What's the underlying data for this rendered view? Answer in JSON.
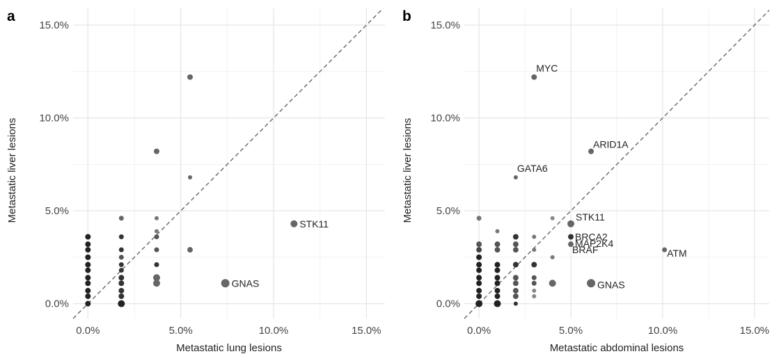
{
  "chart_data": [
    {
      "type": "scatter",
      "panel": "a",
      "xlabel": "Metastatic lung lesions",
      "ylabel": "Metastatic liver lesions",
      "xlim": [
        -0.8,
        16.0
      ],
      "ylim": [
        -0.8,
        15.9
      ],
      "xticks": [
        0,
        5,
        10,
        15
      ],
      "yticks": [
        0,
        5,
        10,
        15
      ],
      "tick_format": "percent_1dp",
      "grid": true,
      "reference_line": "y = x (dashed)",
      "points": [
        {
          "x": 0.0,
          "y": 0.0,
          "size": 4,
          "shade": "#222222"
        },
        {
          "x": 0.0,
          "y": 0.4,
          "size": 4,
          "shade": "#222222"
        },
        {
          "x": 0.0,
          "y": 0.7,
          "size": 4,
          "shade": "#222222"
        },
        {
          "x": 0.0,
          "y": 1.1,
          "size": 4,
          "shade": "#222222"
        },
        {
          "x": 0.0,
          "y": 1.4,
          "size": 4,
          "shade": "#222222"
        },
        {
          "x": 0.0,
          "y": 1.8,
          "size": 4,
          "shade": "#222222"
        },
        {
          "x": 0.0,
          "y": 2.1,
          "size": 4,
          "shade": "#222222"
        },
        {
          "x": 0.0,
          "y": 2.5,
          "size": 4,
          "shade": "#222222"
        },
        {
          "x": 0.0,
          "y": 2.9,
          "size": 4,
          "shade": "#222222"
        },
        {
          "x": 0.0,
          "y": 3.2,
          "size": 4,
          "shade": "#222222"
        },
        {
          "x": 0.0,
          "y": 3.6,
          "size": 4,
          "shade": "#222222"
        },
        {
          "x": 1.8,
          "y": 0.0,
          "size": 5,
          "shade": "#222222"
        },
        {
          "x": 1.8,
          "y": 0.4,
          "size": 4,
          "shade": "#333333"
        },
        {
          "x": 1.8,
          "y": 0.7,
          "size": 4,
          "shade": "#333333"
        },
        {
          "x": 1.8,
          "y": 1.1,
          "size": 4,
          "shade": "#333333"
        },
        {
          "x": 1.8,
          "y": 1.4,
          "size": 4,
          "shade": "#333333"
        },
        {
          "x": 1.8,
          "y": 1.8,
          "size": 3.5,
          "shade": "#333333"
        },
        {
          "x": 1.8,
          "y": 2.1,
          "size": 3.5,
          "shade": "#333333"
        },
        {
          "x": 1.8,
          "y": 2.5,
          "size": 3.5,
          "shade": "#555555"
        },
        {
          "x": 1.8,
          "y": 2.9,
          "size": 3.5,
          "shade": "#333333"
        },
        {
          "x": 1.8,
          "y": 3.6,
          "size": 3.5,
          "shade": "#333333"
        },
        {
          "x": 1.8,
          "y": 4.6,
          "size": 3.5,
          "shade": "#666666"
        },
        {
          "x": 3.7,
          "y": 1.1,
          "size": 5,
          "shade": "#666666"
        },
        {
          "x": 3.7,
          "y": 1.4,
          "size": 5,
          "shade": "#666666"
        },
        {
          "x": 3.7,
          "y": 2.1,
          "size": 3.5,
          "shade": "#333333"
        },
        {
          "x": 3.7,
          "y": 2.9,
          "size": 3.5,
          "shade": "#555555"
        },
        {
          "x": 3.7,
          "y": 3.6,
          "size": 3.5,
          "shade": "#555555"
        },
        {
          "x": 3.7,
          "y": 3.9,
          "size": 3,
          "shade": "#777777"
        },
        {
          "x": 3.7,
          "y": 4.6,
          "size": 3,
          "shade": "#777777"
        },
        {
          "x": 3.7,
          "y": 8.2,
          "size": 4,
          "shade": "#666666"
        },
        {
          "x": 5.5,
          "y": 2.9,
          "size": 4,
          "shade": "#666666"
        },
        {
          "x": 5.5,
          "y": 6.8,
          "size": 3,
          "shade": "#666666"
        },
        {
          "x": 5.5,
          "y": 12.2,
          "size": 4,
          "shade": "#666666"
        },
        {
          "x": 7.4,
          "y": 1.1,
          "size": 6,
          "shade": "#666666",
          "label": "GNAS"
        },
        {
          "x": 11.1,
          "y": 4.3,
          "size": 5,
          "shade": "#666666",
          "label": "STK11"
        }
      ]
    },
    {
      "type": "scatter",
      "panel": "b",
      "xlabel": "Metastatic abdominal lesions",
      "ylabel": "Metastatic liver lesions",
      "xlim": [
        -0.8,
        15.8
      ],
      "ylim": [
        -0.8,
        15.9
      ],
      "xticks": [
        0,
        5,
        10,
        15
      ],
      "yticks": [
        0,
        5,
        10,
        15
      ],
      "tick_format": "percent_1dp",
      "grid": true,
      "reference_line": "y = x (dashed)",
      "points": [
        {
          "x": 0.0,
          "y": 0.0,
          "size": 5,
          "shade": "#222222"
        },
        {
          "x": 0.0,
          "y": 0.4,
          "size": 4,
          "shade": "#222222"
        },
        {
          "x": 0.0,
          "y": 0.7,
          "size": 4,
          "shade": "#222222"
        },
        {
          "x": 0.0,
          "y": 1.1,
          "size": 4,
          "shade": "#222222"
        },
        {
          "x": 0.0,
          "y": 1.4,
          "size": 4,
          "shade": "#222222"
        },
        {
          "x": 0.0,
          "y": 1.8,
          "size": 4,
          "shade": "#222222"
        },
        {
          "x": 0.0,
          "y": 2.1,
          "size": 4,
          "shade": "#222222"
        },
        {
          "x": 0.0,
          "y": 2.5,
          "size": 4,
          "shade": "#222222"
        },
        {
          "x": 0.0,
          "y": 2.9,
          "size": 4,
          "shade": "#444444"
        },
        {
          "x": 0.0,
          "y": 3.2,
          "size": 4,
          "shade": "#555555"
        },
        {
          "x": 0.0,
          "y": 4.6,
          "size": 3.5,
          "shade": "#777777"
        },
        {
          "x": 1.0,
          "y": 0.0,
          "size": 5,
          "shade": "#222222"
        },
        {
          "x": 1.0,
          "y": 0.4,
          "size": 4,
          "shade": "#222222"
        },
        {
          "x": 1.0,
          "y": 0.7,
          "size": 4,
          "shade": "#222222"
        },
        {
          "x": 1.0,
          "y": 1.1,
          "size": 4,
          "shade": "#222222"
        },
        {
          "x": 1.0,
          "y": 1.4,
          "size": 4,
          "shade": "#222222"
        },
        {
          "x": 1.0,
          "y": 1.8,
          "size": 4,
          "shade": "#222222"
        },
        {
          "x": 1.0,
          "y": 2.1,
          "size": 4,
          "shade": "#222222"
        },
        {
          "x": 1.0,
          "y": 2.9,
          "size": 4,
          "shade": "#555555"
        },
        {
          "x": 1.0,
          "y": 3.2,
          "size": 4,
          "shade": "#555555"
        },
        {
          "x": 1.0,
          "y": 3.9,
          "size": 3,
          "shade": "#777777"
        },
        {
          "x": 2.0,
          "y": 0.0,
          "size": 3,
          "shade": "#333333"
        },
        {
          "x": 2.0,
          "y": 0.4,
          "size": 4,
          "shade": "#555555"
        },
        {
          "x": 2.0,
          "y": 0.7,
          "size": 4,
          "shade": "#555555"
        },
        {
          "x": 2.0,
          "y": 1.1,
          "size": 4,
          "shade": "#555555"
        },
        {
          "x": 2.0,
          "y": 1.4,
          "size": 4,
          "shade": "#555555"
        },
        {
          "x": 2.0,
          "y": 2.1,
          "size": 4,
          "shade": "#333333"
        },
        {
          "x": 2.0,
          "y": 2.9,
          "size": 4,
          "shade": "#555555"
        },
        {
          "x": 2.0,
          "y": 3.2,
          "size": 4,
          "shade": "#555555"
        },
        {
          "x": 2.0,
          "y": 3.6,
          "size": 4,
          "shade": "#333333"
        },
        {
          "x": 2.0,
          "y": 6.8,
          "size": 3,
          "shade": "#666666",
          "label": "GATA6"
        },
        {
          "x": 3.0,
          "y": 0.4,
          "size": 3,
          "shade": "#888888"
        },
        {
          "x": 3.0,
          "y": 0.7,
          "size": 3,
          "shade": "#888888"
        },
        {
          "x": 3.0,
          "y": 1.1,
          "size": 3.5,
          "shade": "#555555"
        },
        {
          "x": 3.0,
          "y": 1.4,
          "size": 3.5,
          "shade": "#555555"
        },
        {
          "x": 3.0,
          "y": 2.1,
          "size": 4,
          "shade": "#333333"
        },
        {
          "x": 3.0,
          "y": 2.9,
          "size": 3,
          "shade": "#777777"
        },
        {
          "x": 3.0,
          "y": 3.6,
          "size": 3,
          "shade": "#777777"
        },
        {
          "x": 3.0,
          "y": 12.2,
          "size": 4,
          "shade": "#666666",
          "label": "MYC"
        },
        {
          "x": 4.0,
          "y": 1.1,
          "size": 5,
          "shade": "#666666"
        },
        {
          "x": 4.0,
          "y": 2.5,
          "size": 3,
          "shade": "#777777"
        },
        {
          "x": 4.0,
          "y": 4.6,
          "size": 3,
          "shade": "#888888"
        },
        {
          "x": 5.0,
          "y": 3.2,
          "size": 4,
          "shade": "#666666",
          "label": "MAP2K4"
        },
        {
          "x": 5.0,
          "y": 3.6,
          "size": 4,
          "shade": "#333333",
          "label": "BRCA2"
        },
        {
          "x": 5.0,
          "y": 4.3,
          "size": 5,
          "shade": "#666666",
          "label": "STK11"
        },
        {
          "x": 5.0,
          "y": 2.9,
          "size": 0,
          "shade": "#666666",
          "label": "BRAF"
        },
        {
          "x": 6.1,
          "y": 1.1,
          "size": 6,
          "shade": "#666666",
          "label": "GNAS"
        },
        {
          "x": 6.1,
          "y": 8.2,
          "size": 4,
          "shade": "#666666",
          "label": "ARID1A"
        },
        {
          "x": 10.1,
          "y": 2.9,
          "size": 3.5,
          "shade": "#666666",
          "label": "ATM"
        }
      ]
    }
  ]
}
